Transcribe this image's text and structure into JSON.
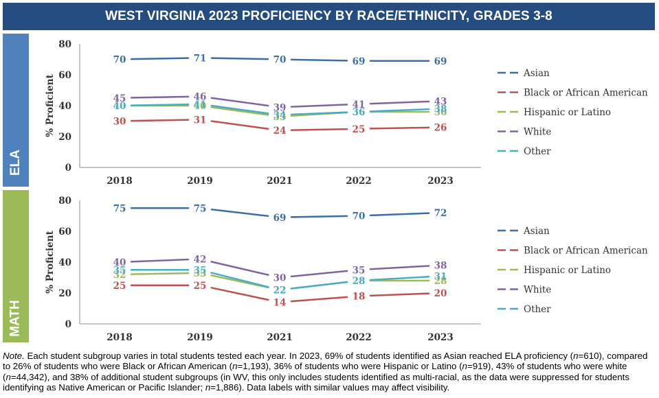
{
  "title": "WEST VIRGINIA 2023 PROFICIENCY BY RACE/ETHNICITY, GRADES 3-8",
  "tabs": {
    "ela": "ELA",
    "math": "MATH"
  },
  "note": {
    "lead": "Note.",
    "t1": " Each student subgroup varies in total students tested each year. In 2023, 69% of students identified as Asian reached ELA proficiency (",
    "n": "n",
    "t2": "=610), compared to 26% of students who were Black or African American (",
    "t3": "=1,193), 36% of students who were Hispanic or Latino (",
    "t4": "=919), 43% of students who were white (",
    "t5": "=44,342), and 38% of additional student subgroups (in WV, this only includes students identified as multi-racial, as the data were suppressed for students identifying as Native American or Pacific Islander; ",
    "t6": "=1,886). Data labels with similar values may affect visibility."
  },
  "colors": {
    "asian": "#3a6ea5",
    "black": "#c0504d",
    "hispanic": "#9bbb59",
    "white": "#8064a2",
    "other": "#4bacc6"
  },
  "chart_data": [
    {
      "type": "line",
      "name": "ELA",
      "categories": [
        "2018",
        "2019",
        "2021",
        "2022",
        "2023"
      ],
      "ylabel": "% Proficient",
      "ylim": [
        0,
        80
      ],
      "yticks": [
        "0",
        "20",
        "40",
        "60",
        "80"
      ],
      "grid": false,
      "legend": "right",
      "series": [
        {
          "name": "Asian",
          "key": "asian",
          "values": [
            70,
            71,
            70,
            69,
            69
          ]
        },
        {
          "name": "Black or African American",
          "key": "black",
          "values": [
            30,
            31,
            24,
            25,
            26
          ]
        },
        {
          "name": "Hispanic or Latino",
          "key": "hispanic",
          "values": [
            40,
            40,
            33,
            36,
            36
          ]
        },
        {
          "name": "White",
          "key": "white",
          "values": [
            45,
            46,
            39,
            41,
            43
          ]
        },
        {
          "name": "Other",
          "key": "other",
          "values": [
            40,
            41,
            34,
            36,
            38
          ]
        }
      ]
    },
    {
      "type": "line",
      "name": "MATH",
      "categories": [
        "2018",
        "2019",
        "2021",
        "2022",
        "2023"
      ],
      "ylabel": "% Proficient",
      "ylim": [
        0,
        80
      ],
      "yticks": [
        "0",
        "20",
        "40",
        "60",
        "80"
      ],
      "grid": false,
      "legend": "right",
      "series": [
        {
          "name": "Asian",
          "key": "asian",
          "values": [
            75,
            75,
            69,
            70,
            72
          ]
        },
        {
          "name": "Black or African American",
          "key": "black",
          "values": [
            25,
            25,
            14,
            18,
            20
          ]
        },
        {
          "name": "Hispanic or Latino",
          "key": "hispanic",
          "values": [
            32,
            33,
            22,
            28,
            28
          ]
        },
        {
          "name": "White",
          "key": "white",
          "values": [
            40,
            42,
            30,
            35,
            38
          ]
        },
        {
          "name": "Other",
          "key": "other",
          "values": [
            35,
            35,
            22,
            28,
            31
          ]
        }
      ]
    }
  ]
}
